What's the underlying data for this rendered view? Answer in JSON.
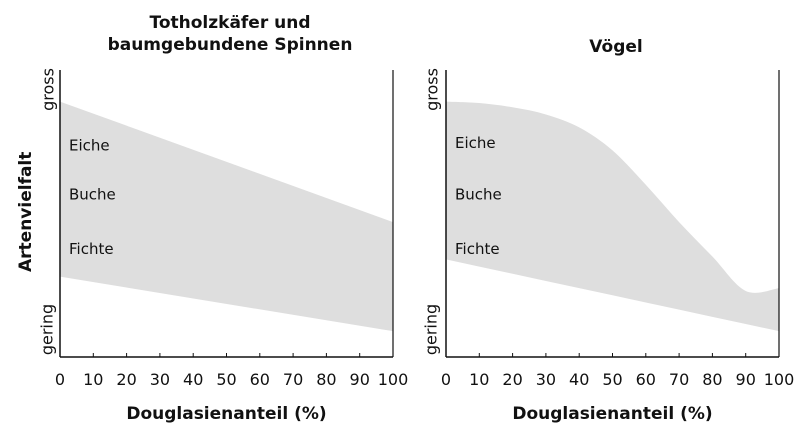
{
  "shared_ylabel": "Artenvielfalt",
  "chart_data": [
    {
      "type": "area",
      "title": "Totholzkäfer und\nbaumgebundene Spinnen",
      "xlabel": "Douglasienanteil (%)",
      "ylabel_top": "gross",
      "ylabel_bottom": "gering",
      "xlim": [
        0,
        100
      ],
      "ylim": [
        0,
        1
      ],
      "x_ticks": [
        "0",
        "10",
        "20",
        "30",
        "40",
        "50",
        "60",
        "70",
        "80",
        "90",
        "100"
      ],
      "series": [
        {
          "x": [
            0,
            100
          ],
          "lower": [
            0.28,
            0.09
          ],
          "upper": [
            0.89,
            0.47
          ]
        }
      ],
      "annotations": [
        {
          "text": "Eiche",
          "y": 0.74
        },
        {
          "text": "Buche",
          "y": 0.57
        },
        {
          "text": "Fichte",
          "y": 0.38
        }
      ],
      "fill_color": "#dedede"
    },
    {
      "type": "area",
      "title": "Vögel",
      "xlabel": "Douglasienanteil (%)",
      "ylabel_top": "gross",
      "ylabel_bottom": "gering",
      "xlim": [
        0,
        100
      ],
      "ylim": [
        0,
        1
      ],
      "x_ticks": [
        "0",
        "10",
        "20",
        "30",
        "40",
        "50",
        "60",
        "70",
        "80",
        "90",
        "100"
      ],
      "series": [
        {
          "x": [
            0,
            10,
            20,
            30,
            40,
            50,
            60,
            70,
            80,
            90,
            100
          ],
          "lower": [
            0.34,
            0.315,
            0.29,
            0.265,
            0.24,
            0.215,
            0.19,
            0.165,
            0.14,
            0.115,
            0.09
          ],
          "upper": [
            0.89,
            0.885,
            0.87,
            0.845,
            0.8,
            0.72,
            0.6,
            0.47,
            0.35,
            0.23,
            0.24
          ]
        }
      ],
      "annotations": [
        {
          "text": "Eiche",
          "y": 0.75
        },
        {
          "text": "Buche",
          "y": 0.57
        },
        {
          "text": "Fichte",
          "y": 0.38
        }
      ],
      "fill_color": "#dedede"
    }
  ]
}
